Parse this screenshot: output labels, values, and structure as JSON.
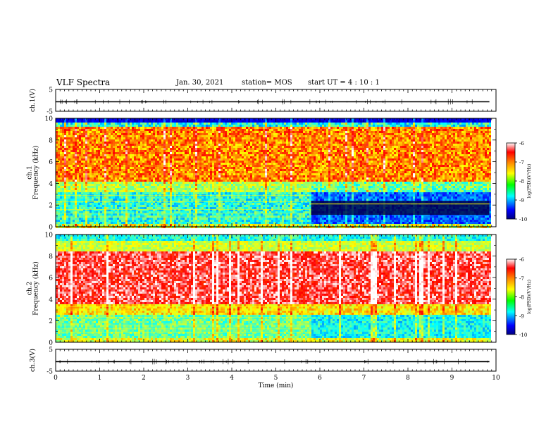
{
  "header": {
    "title": "VLF Spectra",
    "date": "Jan. 30, 2021",
    "station": "station= MOS",
    "start_time": "start UT =  4 : 10 : 1"
  },
  "chart_data": {
    "type": "heatmap",
    "panels": [
      {
        "name": "ch1-waveform",
        "ylabel": "ch.1(V)",
        "ylim": [
          -5,
          5
        ],
        "yticks": [
          "5",
          "-5"
        ]
      },
      {
        "name": "ch1-spectrogram",
        "ylabel": "ch.1\nFrequency (kHz)",
        "ylim": [
          0,
          10
        ],
        "yticks": [
          "0",
          "2",
          "4",
          "6",
          "8",
          "10"
        ],
        "colorbar": {
          "label": "log(PSD)(V²/Hz)",
          "range": [
            -10,
            -6
          ],
          "ticks": [
            "-6",
            "-7",
            "-8",
            "-9",
            "-10"
          ]
        }
      },
      {
        "name": "ch2-spectrogram",
        "ylabel": "ch.2\nFrequency (kHz)",
        "ylim": [
          0,
          10
        ],
        "yticks": [
          "0",
          "2",
          "4",
          "6",
          "8",
          "10"
        ],
        "colorbar": {
          "label": "log(PSD)(V²/Hz)",
          "range": [
            -10,
            -6
          ],
          "ticks": [
            "-6",
            "-7",
            "-8",
            "-9",
            "-10"
          ]
        }
      },
      {
        "name": "ch3-waveform",
        "ylabel": "ch.3(V)",
        "ylim": [
          -5,
          5
        ],
        "yticks": [
          "5",
          "-5"
        ]
      }
    ],
    "xlabel": "Time (min)",
    "xlim": [
      0,
      10
    ],
    "xticks": [
      "0",
      "1",
      "2",
      "3",
      "4",
      "5",
      "6",
      "7",
      "8",
      "9",
      "10"
    ],
    "data_end_min": 9.85,
    "regime_change_min": 5.8,
    "colormap": [
      "#000080",
      "#0000ff",
      "#0080ff",
      "#00ffff",
      "#80ff80",
      "#ffff00",
      "#ff8000",
      "#ff0000",
      "#ffffff"
    ]
  }
}
